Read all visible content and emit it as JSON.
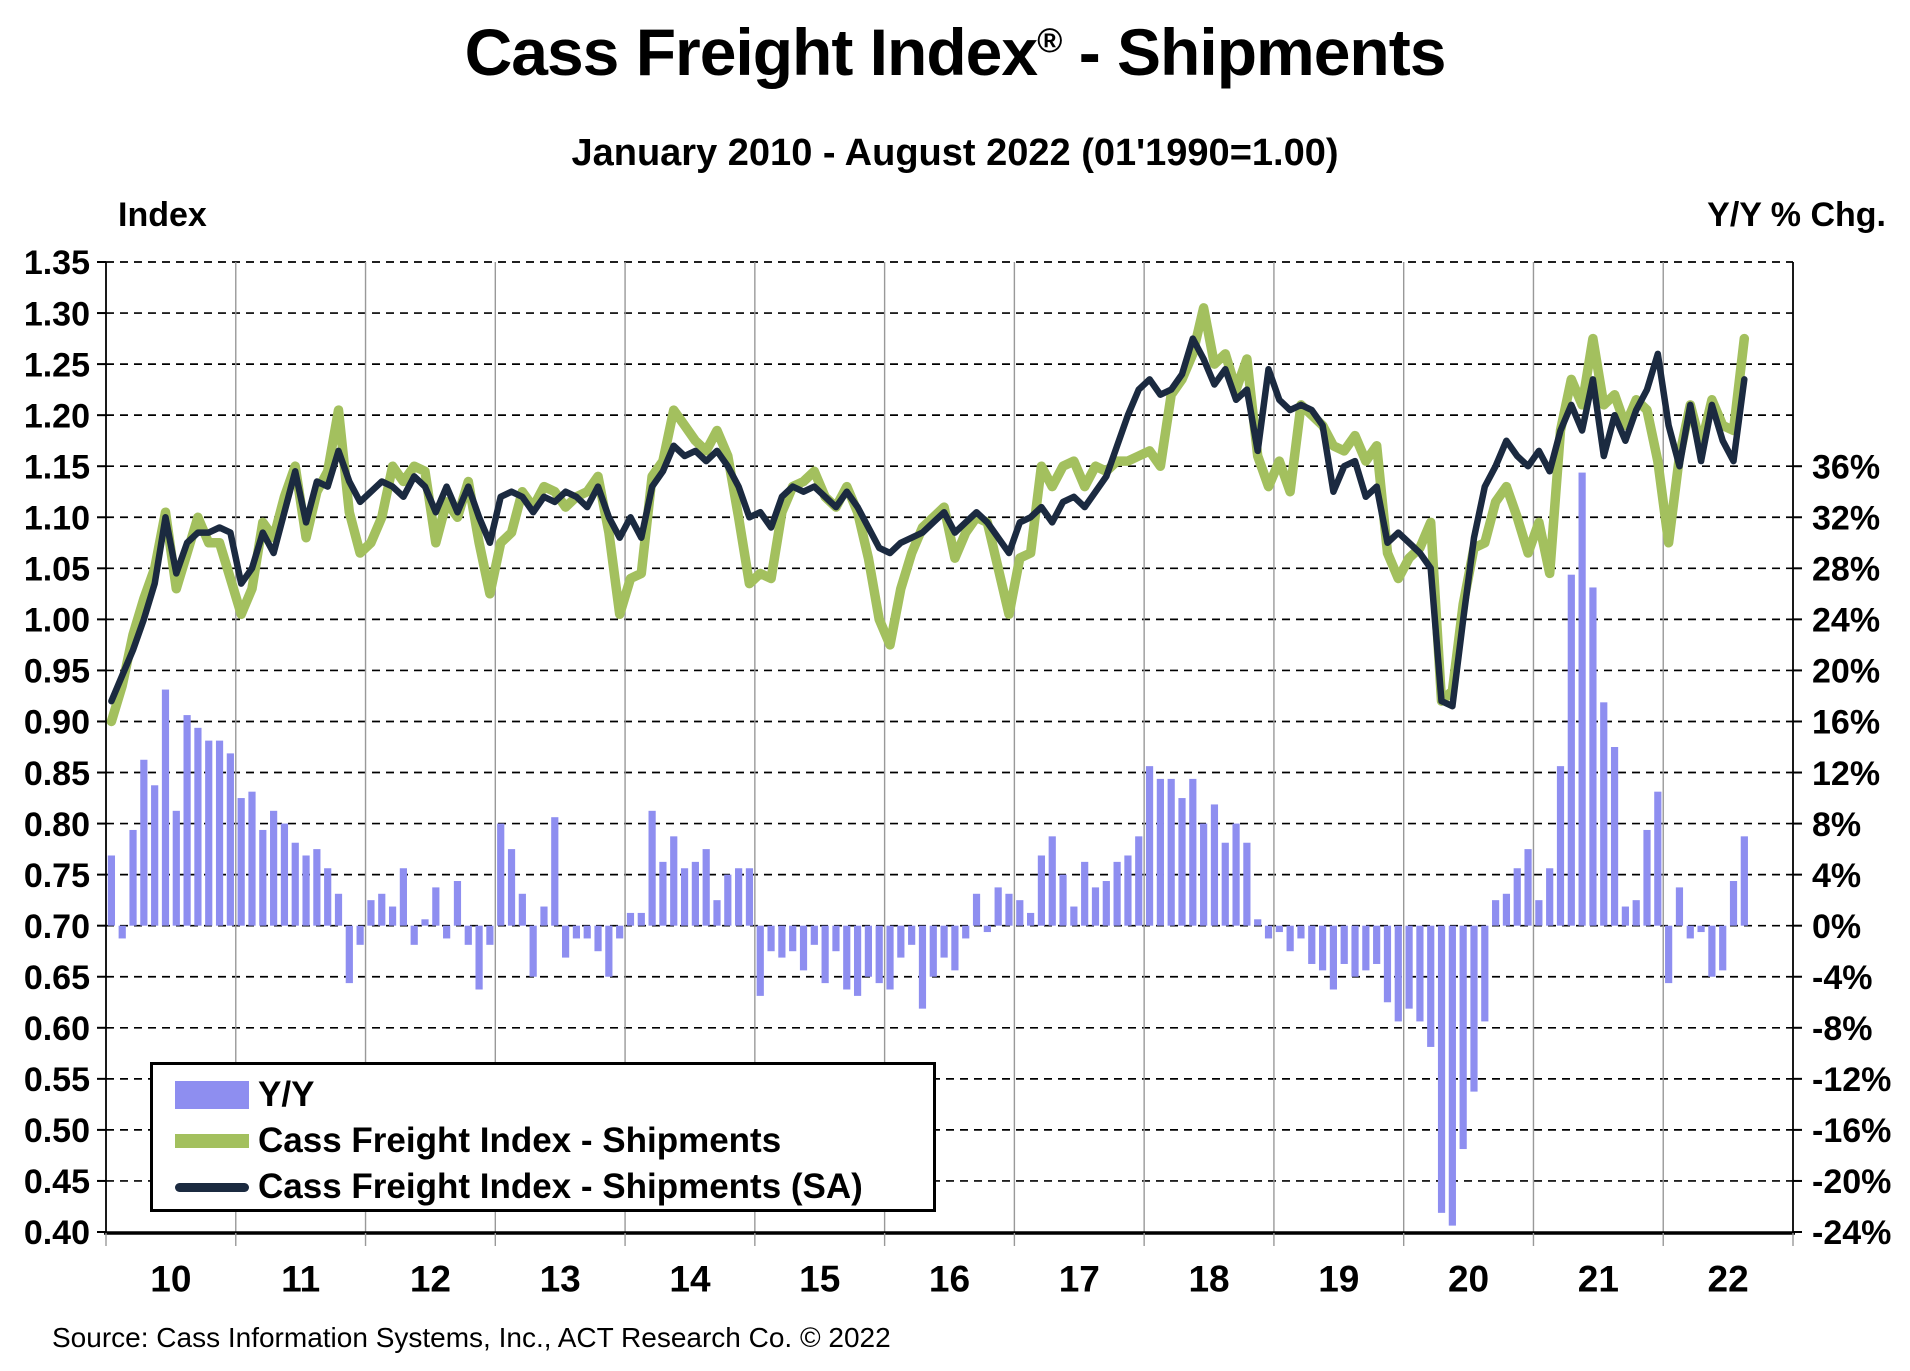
{
  "header": {
    "title_prefix": "Cass Freight Index",
    "title_reg": "®",
    "title_suffix": " - Shipments",
    "subtitle": "January 2010 - August 2022 (01'1990=1.00)"
  },
  "source_note": "Source: Cass Information Systems, Inc., ACT Research Co. © 2022",
  "colors": {
    "bar": "#8e8ef0",
    "green_line": "#a3c05e",
    "navy_line": "#1b2a40",
    "gridline": "#000000",
    "year_line": "#999999",
    "text": "#000000"
  },
  "chart_data": {
    "type": "combo",
    "x": {
      "start": "2010-01",
      "end_of_data": "2022-08",
      "axis_end": "2022-12",
      "frequency": "monthly",
      "year_labels": [
        "10",
        "11",
        "12",
        "13",
        "14",
        "15",
        "16",
        "17",
        "18",
        "19",
        "20",
        "21",
        "22"
      ]
    },
    "left_axis": {
      "title": "Index",
      "min": 0.4,
      "max": 1.35,
      "ticks": [
        1.35,
        1.3,
        1.25,
        1.2,
        1.15,
        1.1,
        1.05,
        1.0,
        0.95,
        0.9,
        0.85,
        0.8,
        0.75,
        0.7,
        0.65,
        0.6,
        0.55,
        0.5,
        0.45,
        0.4
      ],
      "grid": "dashed"
    },
    "right_axis": {
      "title": "Y/Y % Chg.",
      "min": -24,
      "max": 36,
      "ticks": [
        36,
        32,
        28,
        24,
        20,
        16,
        12,
        8,
        4,
        0,
        -4,
        -8,
        -12,
        -16,
        -20,
        -24
      ],
      "zero_aligns_with_left_value": 0.7,
      "four_pct_equals_left_units": 0.05
    },
    "series": [
      {
        "name": "Y/Y",
        "type": "bar",
        "axis": "right",
        "unit": "%",
        "values": [
          5.5,
          -1.0,
          7.5,
          13.0,
          11.0,
          18.5,
          9.0,
          16.5,
          15.5,
          14.5,
          14.5,
          13.5,
          10.0,
          10.5,
          7.5,
          9.0,
          8.0,
          6.5,
          5.5,
          6.0,
          4.5,
          2.5,
          -4.5,
          -1.5,
          2.0,
          2.5,
          1.5,
          4.5,
          -1.5,
          0.5,
          3.0,
          -1.0,
          3.5,
          -1.5,
          -5.0,
          -1.5,
          8.0,
          6.0,
          2.5,
          -4.0,
          1.5,
          8.5,
          -2.5,
          -1.0,
          -1.0,
          -2.0,
          -4.0,
          -1.0,
          1.0,
          1.0,
          9.0,
          5.0,
          7.0,
          4.5,
          5.0,
          6.0,
          2.0,
          4.0,
          4.5,
          4.5,
          -5.5,
          -2.0,
          -2.5,
          -2.0,
          -3.5,
          -1.5,
          -4.5,
          -2.0,
          -5.0,
          -5.5,
          -4.0,
          -4.5,
          -5.0,
          -2.5,
          -1.5,
          -6.5,
          -4.0,
          -2.5,
          -3.5,
          -1.0,
          2.5,
          -0.5,
          3.0,
          2.5,
          2.0,
          1.0,
          5.5,
          7.0,
          4.0,
          1.5,
          5.0,
          3.0,
          3.5,
          5.0,
          5.5,
          7.0,
          12.5,
          11.5,
          11.5,
          10.0,
          11.5,
          8.0,
          9.5,
          6.5,
          8.0,
          6.5,
          0.5,
          -1.0,
          -0.5,
          -2.0,
          -1.0,
          -3.0,
          -3.5,
          -5.0,
          -3.0,
          -4.0,
          -3.5,
          -3.0,
          -6.0,
          -7.5,
          -6.5,
          -7.5,
          -9.5,
          -22.5,
          -23.5,
          -17.5,
          -13.0,
          -7.5,
          2.0,
          2.5,
          4.5,
          6.0,
          2.0,
          4.5,
          12.5,
          27.5,
          35.5,
          26.5,
          17.5,
          14.0,
          1.5,
          2.0,
          7.5,
          10.5,
          -4.5,
          3.0,
          -1.0,
          -0.5,
          -4.0,
          -3.5,
          3.5,
          7.0
        ]
      },
      {
        "name": "Cass Freight Index - Shipments",
        "type": "line",
        "axis": "left",
        "values": [
          0.9,
          0.935,
          0.985,
          1.02,
          1.05,
          1.105,
          1.03,
          1.065,
          1.1,
          1.075,
          1.075,
          1.04,
          1.005,
          1.03,
          1.095,
          1.08,
          1.12,
          1.15,
          1.08,
          1.125,
          1.145,
          1.205,
          1.105,
          1.065,
          1.075,
          1.1,
          1.15,
          1.135,
          1.15,
          1.145,
          1.075,
          1.115,
          1.1,
          1.135,
          1.075,
          1.025,
          1.075,
          1.085,
          1.125,
          1.11,
          1.13,
          1.125,
          1.11,
          1.12,
          1.125,
          1.14,
          1.085,
          1.005,
          1.04,
          1.045,
          1.14,
          1.155,
          1.205,
          1.19,
          1.175,
          1.165,
          1.185,
          1.16,
          1.1,
          1.035,
          1.045,
          1.04,
          1.105,
          1.13,
          1.135,
          1.145,
          1.12,
          1.11,
          1.13,
          1.105,
          1.06,
          1.0,
          0.975,
          1.03,
          1.065,
          1.09,
          1.1,
          1.11,
          1.06,
          1.085,
          1.1,
          1.095,
          1.05,
          1.005,
          1.06,
          1.065,
          1.15,
          1.13,
          1.15,
          1.155,
          1.13,
          1.15,
          1.145,
          1.155,
          1.155,
          1.16,
          1.165,
          1.15,
          1.22,
          1.235,
          1.26,
          1.305,
          1.25,
          1.26,
          1.225,
          1.255,
          1.16,
          1.13,
          1.155,
          1.125,
          1.21,
          1.2,
          1.19,
          1.17,
          1.165,
          1.18,
          1.155,
          1.17,
          1.065,
          1.04,
          1.06,
          1.07,
          1.095,
          0.92,
          0.93,
          1.015,
          1.07,
          1.075,
          1.115,
          1.13,
          1.1,
          1.065,
          1.095,
          1.045,
          1.185,
          1.235,
          1.21,
          1.275,
          1.21,
          1.22,
          1.19,
          1.215,
          1.205,
          1.155,
          1.075,
          1.16,
          1.21,
          1.17,
          1.215,
          1.19,
          1.185,
          1.275
        ]
      },
      {
        "name": "Cass Freight Index - Shipments (SA)",
        "type": "line",
        "axis": "left",
        "values": [
          0.92,
          0.945,
          0.97,
          1.0,
          1.035,
          1.1,
          1.045,
          1.075,
          1.085,
          1.085,
          1.09,
          1.085,
          1.035,
          1.05,
          1.085,
          1.065,
          1.105,
          1.145,
          1.095,
          1.135,
          1.13,
          1.165,
          1.135,
          1.115,
          1.125,
          1.135,
          1.13,
          1.12,
          1.14,
          1.13,
          1.105,
          1.13,
          1.105,
          1.13,
          1.1,
          1.075,
          1.12,
          1.125,
          1.12,
          1.105,
          1.12,
          1.115,
          1.125,
          1.12,
          1.11,
          1.13,
          1.1,
          1.08,
          1.1,
          1.08,
          1.13,
          1.145,
          1.17,
          1.16,
          1.165,
          1.155,
          1.165,
          1.15,
          1.13,
          1.1,
          1.105,
          1.09,
          1.12,
          1.13,
          1.125,
          1.13,
          1.12,
          1.11,
          1.125,
          1.11,
          1.09,
          1.07,
          1.065,
          1.075,
          1.08,
          1.085,
          1.095,
          1.105,
          1.085,
          1.095,
          1.105,
          1.095,
          1.08,
          1.065,
          1.095,
          1.1,
          1.11,
          1.095,
          1.115,
          1.12,
          1.11,
          1.125,
          1.14,
          1.17,
          1.2,
          1.225,
          1.235,
          1.22,
          1.225,
          1.24,
          1.275,
          1.255,
          1.23,
          1.245,
          1.215,
          1.225,
          1.165,
          1.245,
          1.215,
          1.205,
          1.21,
          1.205,
          1.19,
          1.125,
          1.15,
          1.155,
          1.12,
          1.13,
          1.075,
          1.085,
          1.075,
          1.065,
          1.05,
          0.92,
          0.915,
          1.0,
          1.08,
          1.13,
          1.15,
          1.175,
          1.16,
          1.15,
          1.165,
          1.145,
          1.185,
          1.21,
          1.185,
          1.235,
          1.16,
          1.2,
          1.175,
          1.205,
          1.225,
          1.26,
          1.19,
          1.15,
          1.21,
          1.155,
          1.21,
          1.175,
          1.155,
          1.235
        ]
      }
    ],
    "legend_position": "bottom-left-inside"
  }
}
